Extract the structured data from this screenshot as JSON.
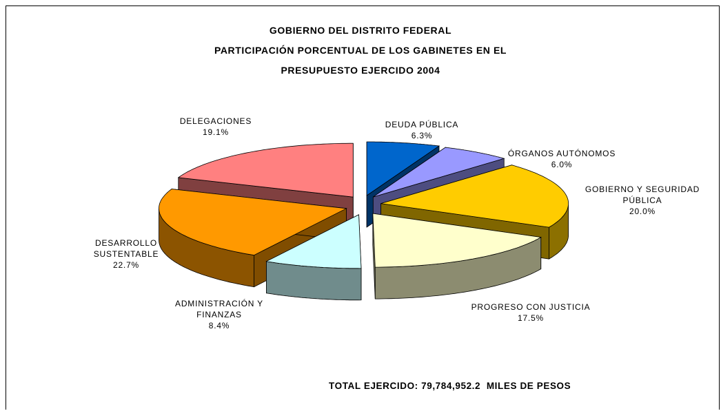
{
  "chart_data": {
    "type": "pie3d",
    "title": [
      "GOBIERNO DEL DISTRITO FEDERAL",
      "PARTICIPACIÓN PORCENTUAL DE LOS GABINETES EN EL",
      "PRESUPUESTO EJERCIDO 2004"
    ],
    "categories": [
      "DEUDA PÚBLICA",
      "ÓRGANOS AUTÓNOMOS",
      "GOBIERNO Y SEGURIDAD PÚBLICA",
      "PROGRESO CON JUSTICIA",
      "ADMINISTRACIÓN Y FINANZAS",
      "DESARROLLO SUSTENTABLE",
      "DELEGACIONES"
    ],
    "values": [
      6.3,
      6.0,
      20.0,
      17.5,
      8.4,
      22.7,
      19.1
    ],
    "value_labels": [
      "6.3%",
      "6.0%",
      "20.0%",
      "17.5%",
      "8.4%",
      "22.7%",
      "19.1%"
    ],
    "colors": [
      "#0066cc",
      "#9999ff",
      "#ffcc00",
      "#ffffcc",
      "#ccffff",
      "#ff9900",
      "#ff8080"
    ],
    "annotation": "TOTAL EJERCIDO: 79,784,952.2  MILES DE PESOS"
  }
}
